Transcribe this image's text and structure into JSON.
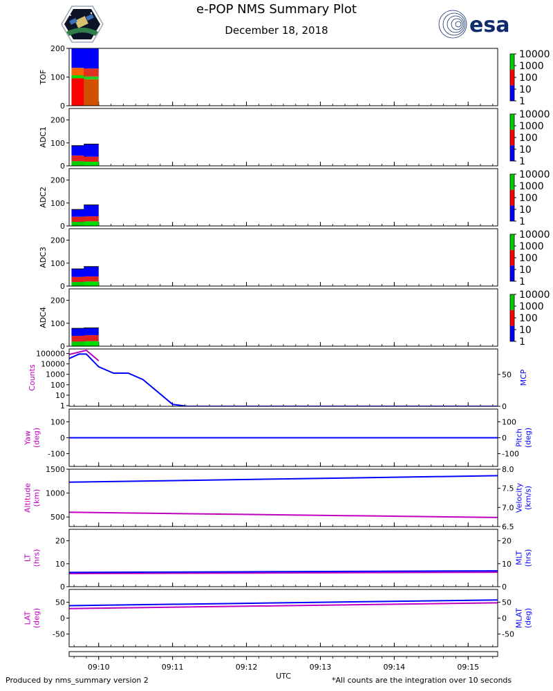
{
  "title": "e-POP NMS Summary Plot",
  "subtitle": "December 18, 2018",
  "footer_left": "Produced by nms_summary version 2",
  "footer_right": "*All counts are the integration over 10 seconds",
  "brand": {
    "right_logo_text": "esa"
  },
  "colors": {
    "magenta": "#c000c0",
    "blue": "#0000ff",
    "green": "#00cc00",
    "red": "#ff0000",
    "navy": "#0f2a6e"
  },
  "chart_data": [
    {
      "type": "heatmap",
      "name": "TOF",
      "ylabel": "TOF",
      "yticks": [
        0,
        100,
        200
      ],
      "ylim": [
        0,
        200
      ],
      "colorbar_ticks": [
        "10000",
        "1000",
        "100",
        "10",
        "1"
      ],
      "columns": [
        {
          "time": "09:09:50",
          "bands": [
            [
              0,
              96,
              "#ff0000"
            ],
            [
              96,
              106,
              "#00dd00"
            ],
            [
              106,
              132,
              "#ff6000"
            ],
            [
              132,
              200,
              "#0000ff"
            ]
          ]
        },
        {
          "time": "09:10:00",
          "bands": [
            [
              0,
              92,
              "#d05000"
            ],
            [
              92,
              102,
              "#20d020"
            ],
            [
              102,
              130,
              "#e03020"
            ],
            [
              130,
              200,
              "#0000ff"
            ]
          ]
        }
      ]
    },
    {
      "type": "heatmap",
      "name": "ADC1",
      "ylabel": "ADC1",
      "yticks": [
        0,
        100,
        200
      ],
      "ylim": [
        0,
        250
      ],
      "colorbar_ticks": [
        "10000",
        "1000",
        "100",
        "10",
        "1"
      ],
      "columns": [
        {
          "time": "09:09:50",
          "bands": [
            [
              0,
              20,
              "#00cc00"
            ],
            [
              20,
              45,
              "#e02020"
            ],
            [
              45,
              88,
              "#0000ff"
            ]
          ]
        },
        {
          "time": "09:10:00",
          "bands": [
            [
              0,
              18,
              "#00dd00"
            ],
            [
              18,
              40,
              "#e02020"
            ],
            [
              40,
              95,
              "#0000ff"
            ]
          ]
        }
      ]
    },
    {
      "type": "heatmap",
      "name": "ADC2",
      "ylabel": "ADC2",
      "yticks": [
        0,
        100,
        200
      ],
      "ylim": [
        0,
        250
      ],
      "colorbar_ticks": [
        "10000",
        "1000",
        "100",
        "10",
        "1"
      ],
      "columns": [
        {
          "time": "09:09:50",
          "bands": [
            [
              0,
              18,
              "#00cc00"
            ],
            [
              18,
              40,
              "#e02020"
            ],
            [
              40,
              72,
              "#0000ff"
            ]
          ]
        },
        {
          "time": "09:10:00",
          "bands": [
            [
              0,
              20,
              "#00dd00"
            ],
            [
              20,
              42,
              "#e02020"
            ],
            [
              42,
              92,
              "#0000ff"
            ]
          ]
        }
      ]
    },
    {
      "type": "heatmap",
      "name": "ADC3",
      "ylabel": "ADC3",
      "yticks": [
        0,
        100,
        200
      ],
      "ylim": [
        0,
        250
      ],
      "colorbar_ticks": [
        "10000",
        "1000",
        "100",
        "10",
        "1"
      ],
      "columns": [
        {
          "time": "09:09:50",
          "bands": [
            [
              0,
              18,
              "#00cc00"
            ],
            [
              18,
              40,
              "#e02020"
            ],
            [
              40,
              75,
              "#0000ff"
            ]
          ]
        },
        {
          "time": "09:10:00",
          "bands": [
            [
              0,
              20,
              "#00dd00"
            ],
            [
              20,
              42,
              "#e02020"
            ],
            [
              42,
              85,
              "#0000ff"
            ]
          ]
        }
      ]
    },
    {
      "type": "heatmap",
      "name": "ADC4",
      "ylabel": "ADC4",
      "yticks": [
        0,
        100,
        200
      ],
      "ylim": [
        0,
        250
      ],
      "colorbar_ticks": [
        "10000",
        "1000",
        "100",
        "10",
        "1"
      ],
      "columns": [
        {
          "time": "09:09:50",
          "bands": [
            [
              0,
              20,
              "#00cc00"
            ],
            [
              20,
              45,
              "#e02020"
            ],
            [
              45,
              78,
              "#0000ff"
            ]
          ]
        },
        {
          "time": "09:10:00",
          "bands": [
            [
              0,
              22,
              "#00dd00"
            ],
            [
              22,
              48,
              "#e02020"
            ],
            [
              48,
              80,
              "#0000ff"
            ]
          ]
        }
      ]
    },
    {
      "type": "line",
      "name": "Counts/MCP",
      "yscale_left": "log",
      "ylabel_left": "Counts",
      "ylabel_right": "MCP",
      "yticks_left": [
        "1",
        "10",
        "100",
        "1000",
        "10000",
        "100000"
      ],
      "yticks_right": [
        "0",
        "50"
      ],
      "series": [
        {
          "name": "Counts",
          "axis": "left",
          "color": "#c000c0",
          "x": [
            "09:09:36",
            "09:09:50",
            "09:10:00"
          ],
          "values": [
            80000,
            200000,
            20000
          ]
        },
        {
          "name": "MCP",
          "axis": "right",
          "color": "#0000ff",
          "ylim": [
            0,
            90
          ],
          "x": [
            "09:09:36",
            "09:09:44",
            "09:09:50",
            "09:10:00",
            "09:10:12",
            "09:10:24",
            "09:10:36",
            "09:11:00",
            "09:11:12",
            "09:15:24"
          ],
          "values": [
            75,
            82,
            82,
            62,
            52,
            52,
            42,
            3,
            0,
            0
          ]
        }
      ]
    },
    {
      "type": "line",
      "name": "Yaw/Pitch",
      "ylabel_left": "Yaw\n(deg)",
      "ylabel_right": "Pitch\n(deg)",
      "yticks_left": [
        "-100",
        "0",
        "100"
      ],
      "yticks_right": [
        "-100",
        "0",
        "100"
      ],
      "series": [
        {
          "name": "Yaw",
          "axis": "left",
          "color": "#c000c0",
          "ylim": [
            -180,
            180
          ],
          "x": [
            "09:09:36",
            "09:15:24"
          ],
          "values": [
            0,
            0
          ]
        },
        {
          "name": "Pitch",
          "axis": "right",
          "color": "#0000ff",
          "ylim": [
            -180,
            180
          ],
          "x": [
            "09:09:36",
            "09:15:24"
          ],
          "values": [
            0,
            0
          ]
        }
      ]
    },
    {
      "type": "line",
      "name": "Altitude/Velocity",
      "ylabel_left": "Altitude\n(km)",
      "ylabel_right": "Velocity\n(km/s)",
      "yticks_left": [
        "500",
        "1000",
        "1500"
      ],
      "yticks_right": [
        "6.5",
        "7.0",
        "7.5",
        "8.0"
      ],
      "series": [
        {
          "name": "Altitude",
          "axis": "left",
          "color": "#c000c0",
          "ylim": [
            300,
            1500
          ],
          "x": [
            "09:09:36",
            "09:15:24"
          ],
          "values": [
            600,
            490
          ]
        },
        {
          "name": "Velocity",
          "axis": "right",
          "color": "#0000ff",
          "ylim": [
            6.5,
            8.0
          ],
          "x": [
            "09:09:36",
            "09:15:24"
          ],
          "values": [
            7.66,
            7.83
          ]
        }
      ]
    },
    {
      "type": "line",
      "name": "LT/MLT",
      "ylabel_left": "LT\n(hrs)",
      "ylabel_right": "MLT\n(hrs)",
      "yticks_left": [
        "0",
        "10",
        "20"
      ],
      "yticks_right": [
        "0",
        "10",
        "20"
      ],
      "series": [
        {
          "name": "LT",
          "axis": "left",
          "color": "#c000c0",
          "ylim": [
            0,
            25
          ],
          "x": [
            "09:09:36",
            "09:15:24"
          ],
          "values": [
            5.7,
            6.3
          ]
        },
        {
          "name": "MLT",
          "axis": "right",
          "color": "#0000ff",
          "ylim": [
            0,
            25
          ],
          "x": [
            "09:09:36",
            "09:15:24"
          ],
          "values": [
            6.2,
            6.9
          ]
        }
      ]
    },
    {
      "type": "line",
      "name": "LAT/MLAT",
      "ylabel_left": "LAT\n(deg)",
      "ylabel_right": "MLAT\n(deg)",
      "yticks_left": [
        "-50",
        "0",
        "50"
      ],
      "yticks_right": [
        "-50",
        "0",
        "50"
      ],
      "series": [
        {
          "name": "LAT",
          "axis": "left",
          "color": "#c000c0",
          "ylim": [
            -90,
            90
          ],
          "x": [
            "09:09:36",
            "09:15:24"
          ],
          "values": [
            30,
            48
          ]
        },
        {
          "name": "MLAT",
          "axis": "right",
          "color": "#0000ff",
          "ylim": [
            -90,
            90
          ],
          "x": [
            "09:09:36",
            "09:15:24"
          ],
          "values": [
            39,
            57
          ]
        }
      ]
    }
  ],
  "xaxis": {
    "label": "UTC",
    "range": [
      "09:09:36",
      "09:15:24"
    ],
    "ticks": [
      "09:10",
      "09:11",
      "09:12",
      "09:13",
      "09:14",
      "09:15"
    ]
  }
}
